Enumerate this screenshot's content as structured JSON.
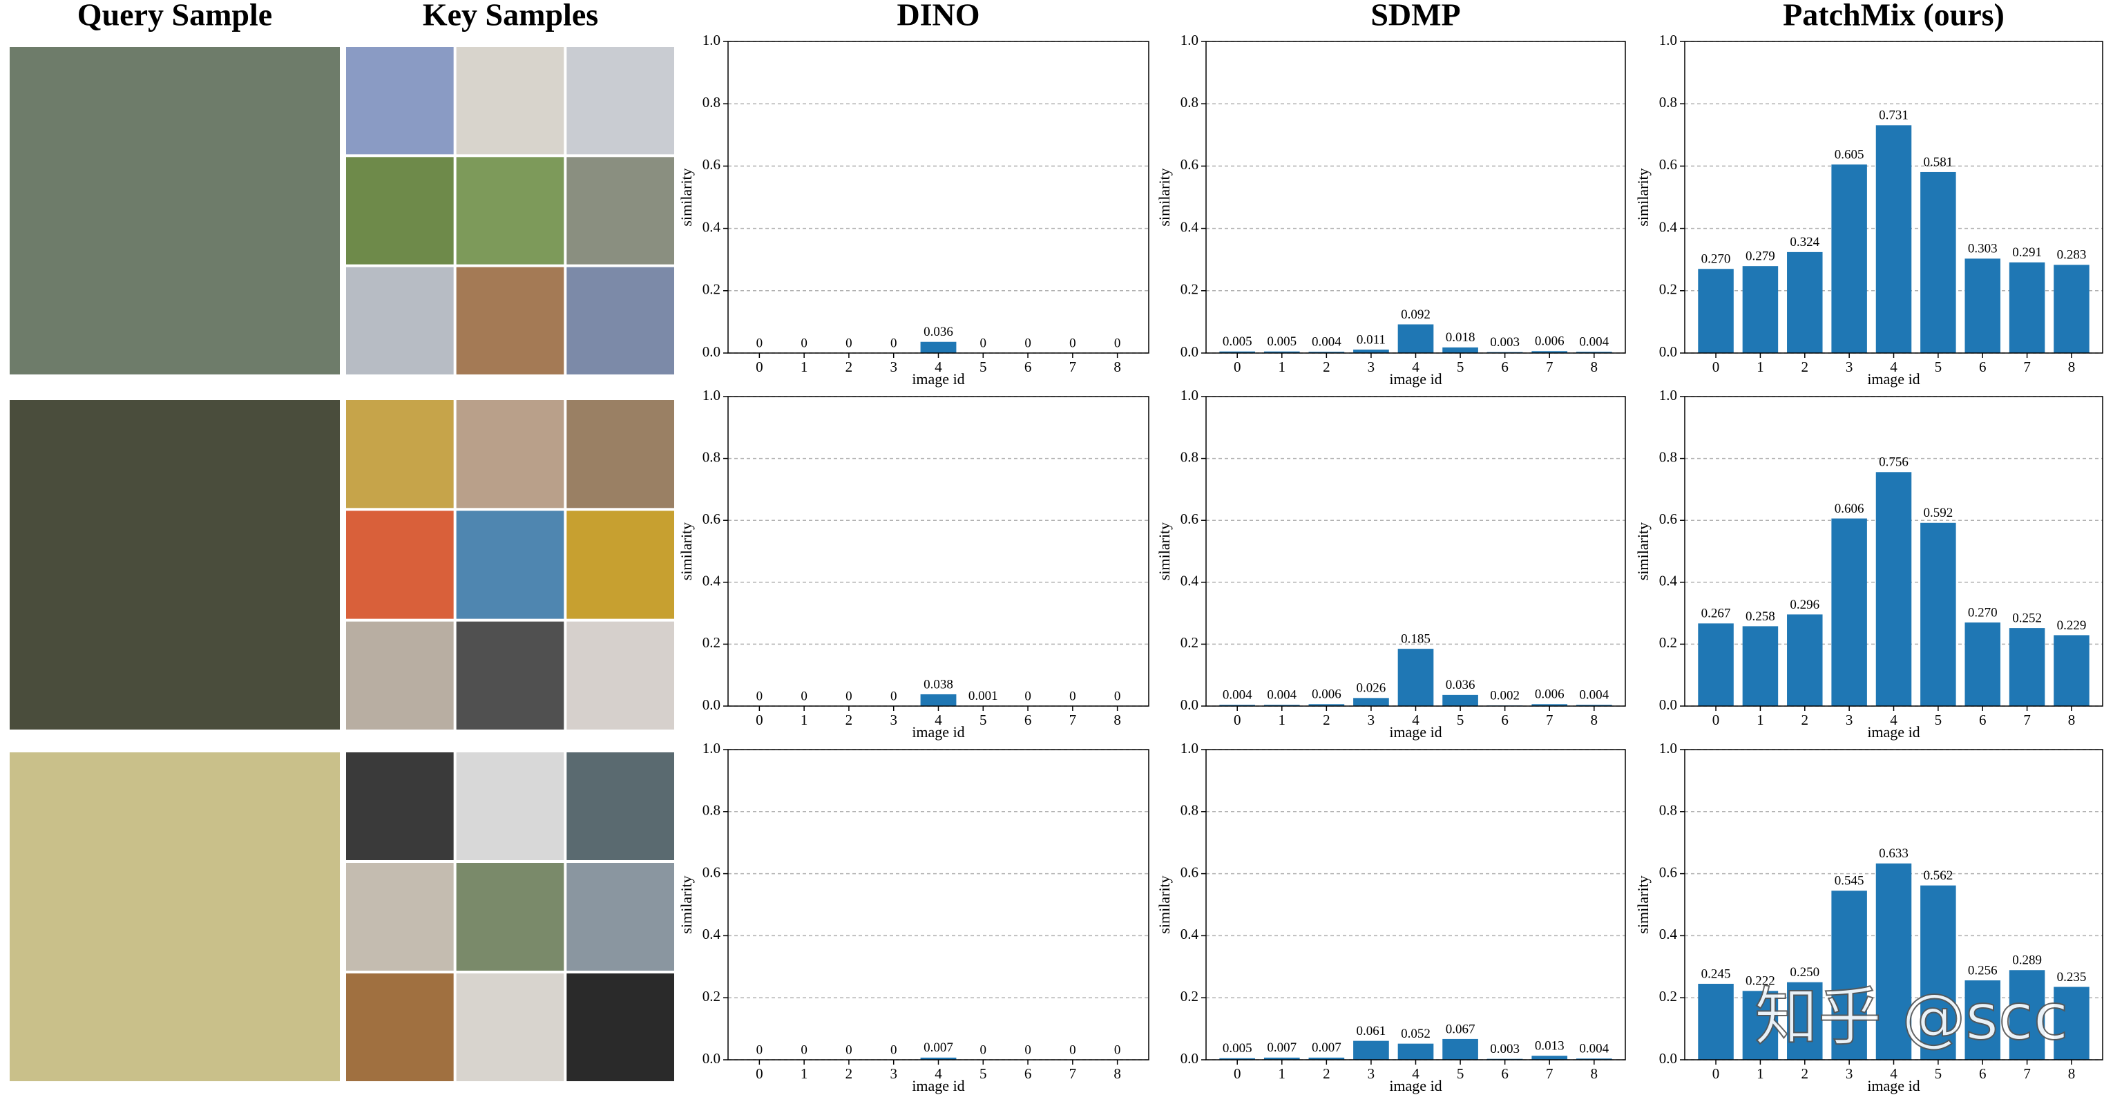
{
  "panel_titles": [
    "Query Sample",
    "Key Samples"
  ],
  "watermark": "知乎 @scc",
  "chart_data": [
    {
      "type": "bar",
      "title": "DINO",
      "x_label": "image id",
      "y_label": "similarity",
      "categories": [
        "0",
        "1",
        "2",
        "3",
        "4",
        "5",
        "6",
        "7",
        "8"
      ],
      "values": [
        0,
        0,
        0,
        0,
        0.036,
        0,
        0,
        0,
        0
      ],
      "value_labels": [
        "0",
        "0",
        "0",
        "0",
        "0.036",
        "0",
        "0",
        "0",
        "0"
      ],
      "color": "#1f77b4",
      "ylim": [
        0,
        1
      ],
      "yticks": [
        {
          "value": 0,
          "label": "0.0"
        },
        0.2,
        0.4,
        0.6,
        0.8,
        {
          "value": 1,
          "label": "1.0"
        }
      ],
      "grid": true
    },
    {
      "type": "bar",
      "title": "SDMP",
      "x_label": "image id",
      "y_label": "similarity",
      "categories": [
        "0",
        "1",
        "2",
        "3",
        "4",
        "5",
        "6",
        "7",
        "8"
      ],
      "values": [
        0.005,
        0.005,
        0.004,
        0.011,
        0.092,
        0.018,
        0.003,
        0.006,
        0.004
      ],
      "value_labels": [
        "0.005",
        "0.005",
        "0.004",
        "0.011",
        "0.092",
        "0.018",
        "0.003",
        "0.006",
        "0.004"
      ],
      "color": "#1f77b4",
      "ylim": [
        0,
        1
      ],
      "yticks": [
        {
          "value": 0,
          "label": "0.0"
        },
        0.2,
        0.4,
        0.6,
        0.8,
        {
          "value": 1,
          "label": "1.0"
        }
      ],
      "grid": true
    },
    {
      "type": "bar",
      "title": "PatchMix (ours)",
      "x_label": "image id",
      "y_label": "similarity",
      "categories": [
        "0",
        "1",
        "2",
        "3",
        "4",
        "5",
        "6",
        "7",
        "8"
      ],
      "values": [
        0.27,
        0.279,
        0.324,
        0.605,
        0.731,
        0.581,
        0.303,
        0.291,
        0.283
      ],
      "value_labels": [
        "0.270",
        "0.279",
        "0.324",
        "0.605",
        "0.731",
        "0.581",
        "0.303",
        "0.291",
        "0.283"
      ],
      "color": "#1f77b4",
      "ylim": [
        0,
        1
      ],
      "yticks": [
        {
          "value": 0,
          "label": "0.0"
        },
        0.2,
        0.4,
        0.6,
        0.8,
        {
          "value": 1,
          "label": "1.0"
        }
      ],
      "grid": true
    },
    {
      "type": "bar",
      "x_label": "image id",
      "y_label": "similarity",
      "categories": [
        "0",
        "1",
        "2",
        "3",
        "4",
        "5",
        "6",
        "7",
        "8"
      ],
      "values": [
        0,
        0,
        0,
        0,
        0.038,
        0.001,
        0,
        0,
        0
      ],
      "value_labels": [
        "0",
        "0",
        "0",
        "0",
        "0.038",
        "0.001",
        "0",
        "0",
        "0"
      ],
      "color": "#1f77b4",
      "ylim": [
        0,
        1
      ],
      "yticks": [
        {
          "value": 0,
          "label": "0.0"
        },
        0.2,
        0.4,
        0.6,
        0.8,
        {
          "value": 1,
          "label": "1.0"
        }
      ],
      "grid": true
    },
    {
      "type": "bar",
      "x_label": "image id",
      "y_label": "similarity",
      "categories": [
        "0",
        "1",
        "2",
        "3",
        "4",
        "5",
        "6",
        "7",
        "8"
      ],
      "values": [
        0.004,
        0.004,
        0.006,
        0.026,
        0.185,
        0.036,
        0.002,
        0.006,
        0.004
      ],
      "value_labels": [
        "0.004",
        "0.004",
        "0.006",
        "0.026",
        "0.185",
        "0.036",
        "0.002",
        "0.006",
        "0.004"
      ],
      "color": "#1f77b4",
      "ylim": [
        0,
        1
      ],
      "yticks": [
        {
          "value": 0,
          "label": "0.0"
        },
        0.2,
        0.4,
        0.6,
        0.8,
        {
          "value": 1,
          "label": "1.0"
        }
      ],
      "grid": true
    },
    {
      "type": "bar",
      "x_label": "image id",
      "y_label": "similarity",
      "categories": [
        "0",
        "1",
        "2",
        "3",
        "4",
        "5",
        "6",
        "7",
        "8"
      ],
      "values": [
        0.267,
        0.258,
        0.296,
        0.606,
        0.756,
        0.592,
        0.27,
        0.252,
        0.229
      ],
      "value_labels": [
        "0.267",
        "0.258",
        "0.296",
        "0.606",
        "0.756",
        "0.592",
        "0.270",
        "0.252",
        "0.229"
      ],
      "color": "#1f77b4",
      "ylim": [
        0,
        1
      ],
      "yticks": [
        {
          "value": 0,
          "label": "0.0"
        },
        0.2,
        0.4,
        0.6,
        0.8,
        {
          "value": 1,
          "label": "1.0"
        }
      ],
      "grid": true
    },
    {
      "type": "bar",
      "x_label": "image id",
      "y_label": "similarity",
      "categories": [
        "0",
        "1",
        "2",
        "3",
        "4",
        "5",
        "6",
        "7",
        "8"
      ],
      "values": [
        0,
        0,
        0,
        0,
        0.007,
        0,
        0,
        0,
        0
      ],
      "value_labels": [
        "0",
        "0",
        "0",
        "0",
        "0.007",
        "0",
        "0",
        "0",
        "0"
      ],
      "color": "#1f77b4",
      "ylim": [
        0,
        1
      ],
      "yticks": [
        {
          "value": 0,
          "label": "0.0"
        },
        0.2,
        0.4,
        0.6,
        0.8,
        {
          "value": 1,
          "label": "1.0"
        }
      ],
      "grid": true
    },
    {
      "type": "bar",
      "x_label": "image id",
      "y_label": "similarity",
      "categories": [
        "0",
        "1",
        "2",
        "3",
        "4",
        "5",
        "6",
        "7",
        "8"
      ],
      "values": [
        0.005,
        0.007,
        0.007,
        0.061,
        0.052,
        0.067,
        0.003,
        0.013,
        0.004
      ],
      "value_labels": [
        "0.005",
        "0.007",
        "0.007",
        "0.061",
        "0.052",
        "0.067",
        "0.003",
        "0.013",
        "0.004"
      ],
      "color": "#1f77b4",
      "ylim": [
        0,
        1
      ],
      "yticks": [
        {
          "value": 0,
          "label": "0.0"
        },
        0.2,
        0.4,
        0.6,
        0.8,
        {
          "value": 1,
          "label": "1.0"
        }
      ],
      "grid": true
    },
    {
      "type": "bar",
      "x_label": "image id",
      "y_label": "similarity",
      "categories": [
        "0",
        "1",
        "2",
        "3",
        "4",
        "5",
        "6",
        "7",
        "8"
      ],
      "values": [
        0.245,
        0.222,
        0.25,
        0.545,
        0.633,
        0.562,
        0.256,
        0.289,
        0.235
      ],
      "value_labels": [
        "0.245",
        "0.222",
        "0.250",
        "0.545",
        "0.633",
        "0.562",
        "0.256",
        "0.289",
        "0.235"
      ],
      "color": "#1f77b4",
      "ylim": [
        0,
        1
      ],
      "yticks": [
        {
          "value": 0,
          "label": "0.0"
        },
        0.2,
        0.4,
        0.6,
        0.8,
        {
          "value": 1,
          "label": "1.0"
        }
      ],
      "grid": true
    }
  ]
}
